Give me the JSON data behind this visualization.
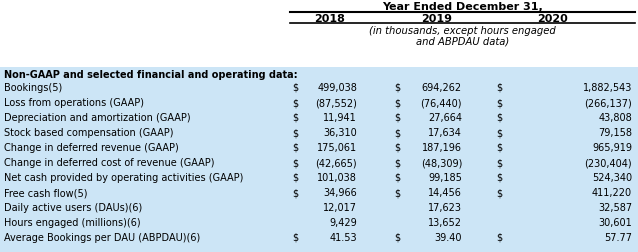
{
  "title": "Year Ended December 31,",
  "subtitle_line1": "(in thousands, except hours engaged",
  "subtitle_line2": "and ABPDAU data)",
  "columns": [
    "2018",
    "2019",
    "2020"
  ],
  "section_header": "Non-GAAP and selected financial and operating data:",
  "rows": [
    {
      "label": "Bookings(5)",
      "has_dollar": true,
      "v2018": "499,038",
      "v2019": "694,262",
      "v2020": "1,882,543"
    },
    {
      "label": "Loss from operations (GAAP)",
      "has_dollar": true,
      "v2018": "(87,552)",
      "v2019": "(76,440)",
      "v2020": "(266,137)"
    },
    {
      "label": "Depreciation and amortization (GAAP)",
      "has_dollar": true,
      "v2018": "11,941",
      "v2019": "27,664",
      "v2020": "43,808"
    },
    {
      "label": "Stock based compensation (GAAP)",
      "has_dollar": true,
      "v2018": "36,310",
      "v2019": "17,634",
      "v2020": "79,158"
    },
    {
      "label": "Change in deferred revenue (GAAP)",
      "has_dollar": true,
      "v2018": "175,061",
      "v2019": "187,196",
      "v2020": "965,919"
    },
    {
      "label": "Change in deferred cost of revenue (GAAP)",
      "has_dollar": true,
      "v2018": "(42,665)",
      "v2019": "(48,309)",
      "v2020": "(230,404)"
    },
    {
      "label": "Net cash provided by operating activities (GAAP)",
      "has_dollar": true,
      "v2018": "101,038",
      "v2019": "99,185",
      "v2020": "524,340"
    },
    {
      "label": "Free cash flow(5)",
      "has_dollar": true,
      "v2018": "34,966",
      "v2019": "14,456",
      "v2020": "411,220"
    },
    {
      "label": "Daily active users (DAUs)(6)",
      "has_dollar": false,
      "v2018": "12,017",
      "v2019": "17,623",
      "v2020": "32,587"
    },
    {
      "label": "Hours engaged (millions)(6)",
      "has_dollar": false,
      "v2018": "9,429",
      "v2019": "13,652",
      "v2020": "30,601"
    },
    {
      "label": "Average Bookings per DAU (ABPDAU)(6)",
      "has_dollar": true,
      "v2018": "41.53",
      "v2019": "39.40",
      "v2020": "57.77"
    }
  ],
  "bg_color": "#cce5f6",
  "alt_bg_color": "#daeef9",
  "header_bg": "#ffffff",
  "font_size": 7.0,
  "header_font_size": 8.0,
  "font_family": "DejaVu Sans"
}
